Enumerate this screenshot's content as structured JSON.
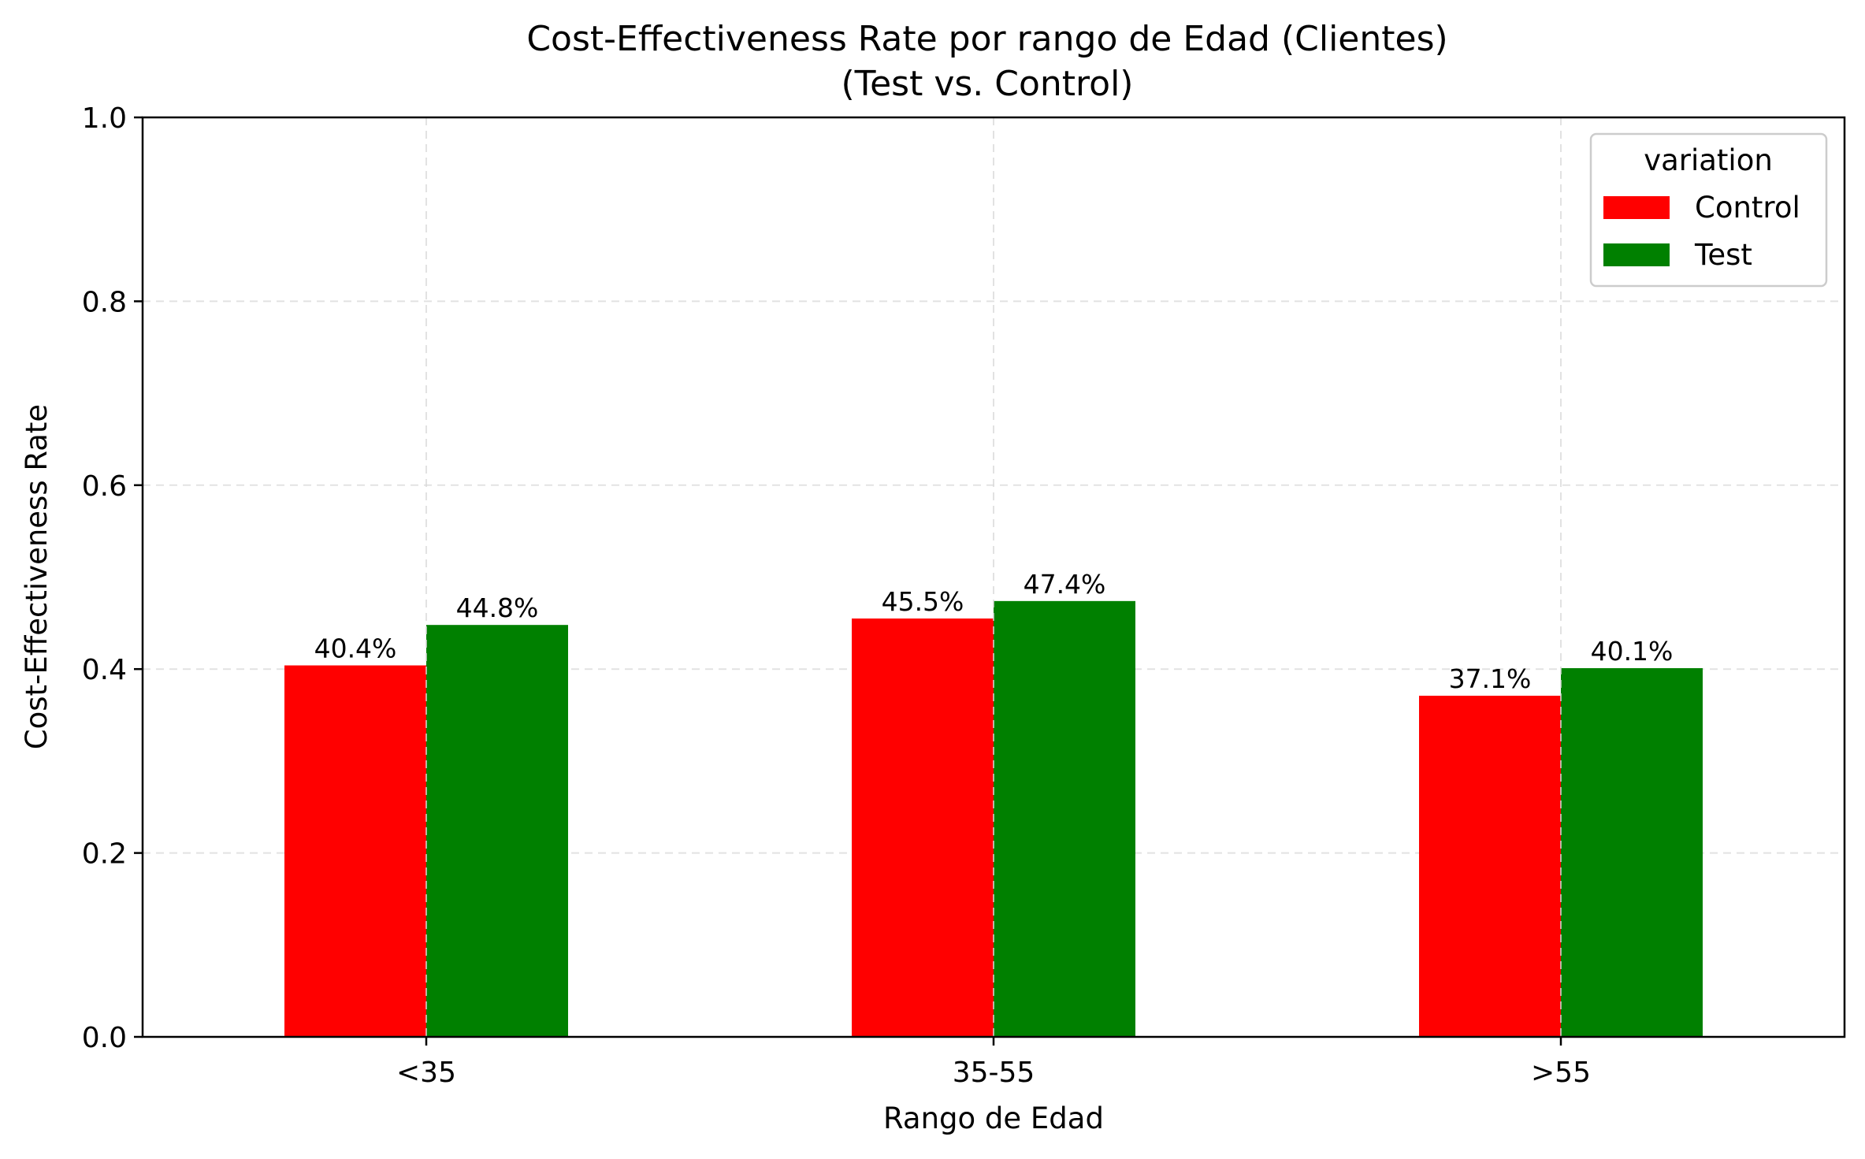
{
  "chart_data": {
    "type": "bar",
    "title": "Cost-Effectiveness Rate por rango de Edad (Clientes)",
    "subtitle": "(Test vs. Control)",
    "xlabel": "Rango de Edad",
    "ylabel": "Cost-Effectiveness Rate",
    "categories": [
      "<35",
      "35-55",
      ">55"
    ],
    "series": [
      {
        "name": "Control",
        "color": "#ff0000",
        "values": [
          0.404,
          0.455,
          0.371
        ],
        "labels": [
          "40.4%",
          "45.5%",
          "37.1%"
        ]
      },
      {
        "name": "Test",
        "color": "#008000",
        "values": [
          0.448,
          0.474,
          0.401
        ],
        "labels": [
          "44.8%",
          "47.4%",
          "40.1%"
        ]
      }
    ],
    "ylim": [
      0,
      1.0
    ],
    "yticks": [
      0.0,
      0.2,
      0.4,
      0.6,
      0.8,
      1.0
    ],
    "ytick_labels": [
      "0.0",
      "0.2",
      "0.4",
      "0.6",
      "0.8",
      "1.0"
    ],
    "grid": true,
    "legend": {
      "title": "variation",
      "placement": "top-right"
    }
  }
}
